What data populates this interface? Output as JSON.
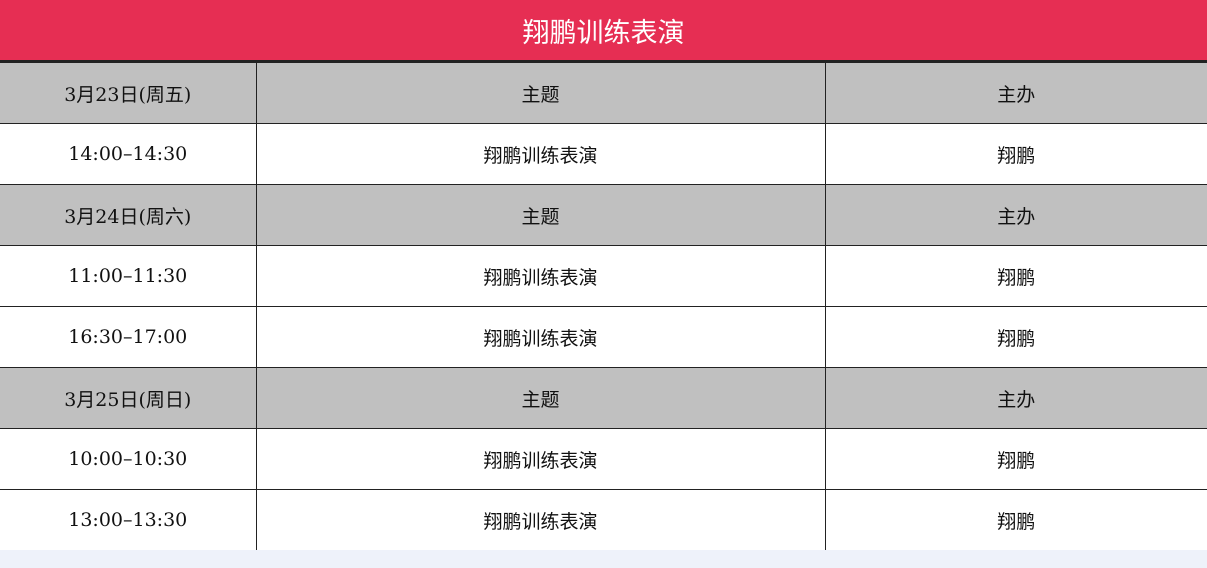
{
  "title": "翔鹏训练表演",
  "colors": {
    "header": "#e62e53",
    "day_row": "#c0c0c0"
  },
  "days": [
    {
      "date": "3月23日(周五)",
      "topic_header": "主题",
      "host_header": "主办",
      "slots": [
        {
          "time": "14:00–14:30",
          "topic": "翔鹏训练表演",
          "host": "翔鹏"
        }
      ]
    },
    {
      "date": "3月24日(周六)",
      "topic_header": "主题",
      "host_header": "主办",
      "slots": [
        {
          "time": "11:00–11:30",
          "topic": "翔鹏训练表演",
          "host": "翔鹏"
        },
        {
          "time": "16:30–17:00",
          "topic": "翔鹏训练表演",
          "host": "翔鹏"
        }
      ]
    },
    {
      "date": "3月25日(周日)",
      "topic_header": "主题",
      "host_header": "主办",
      "slots": [
        {
          "time": "10:00–10:30",
          "topic": "翔鹏训练表演",
          "host": "翔鹏"
        },
        {
          "time": "13:00–13:30",
          "topic": "翔鹏训练表演",
          "host": "翔鹏"
        }
      ]
    }
  ]
}
